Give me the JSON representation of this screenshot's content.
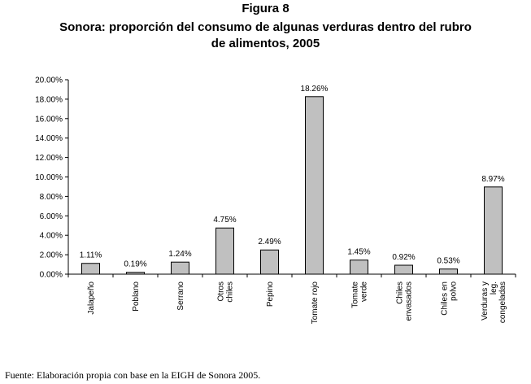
{
  "figure_label": "Figura 8",
  "title": "Sonora: proporción del consumo de algunas verduras dentro del rubro\nde alimentos, 2005",
  "source": {
    "prefix": "Fuente: Elaboración propia con base en la ",
    "abbr": "EIGH",
    "suffix": " de Sonora 2005."
  },
  "colors": {
    "bar_fill": "#c0c0c0",
    "bar_stroke": "#000000",
    "axis": "#000000"
  },
  "chart_data": {
    "type": "bar",
    "categories": [
      [
        "Jalapeño"
      ],
      [
        "Poblano"
      ],
      [
        "Serrano"
      ],
      [
        "Otros",
        "chiles"
      ],
      [
        "Pepino"
      ],
      [
        "Tomate rojo"
      ],
      [
        "Tomate",
        "verde"
      ],
      [
        "Chiles",
        "envasados"
      ],
      [
        "Chiles en",
        "polvo"
      ],
      [
        "Verduras y",
        "leg.",
        "congeladas"
      ]
    ],
    "values": [
      1.11,
      0.19,
      1.24,
      4.75,
      2.49,
      18.26,
      1.45,
      0.92,
      0.53,
      8.97
    ],
    "data_labels": [
      "1.11%",
      "0.19%",
      "1.24%",
      "4.75%",
      "2.49%",
      "18.26%",
      "1.45%",
      "0.92%",
      "0.53%",
      "8.97%"
    ],
    "ylim": [
      0,
      20
    ],
    "yticks": [
      "0.00%",
      "2.00%",
      "4.00%",
      "6.00%",
      "8.00%",
      "10.00%",
      "12.00%",
      "14.00%",
      "16.00%",
      "18.00%",
      "20.00%"
    ],
    "grid": false,
    "legend": "none"
  }
}
